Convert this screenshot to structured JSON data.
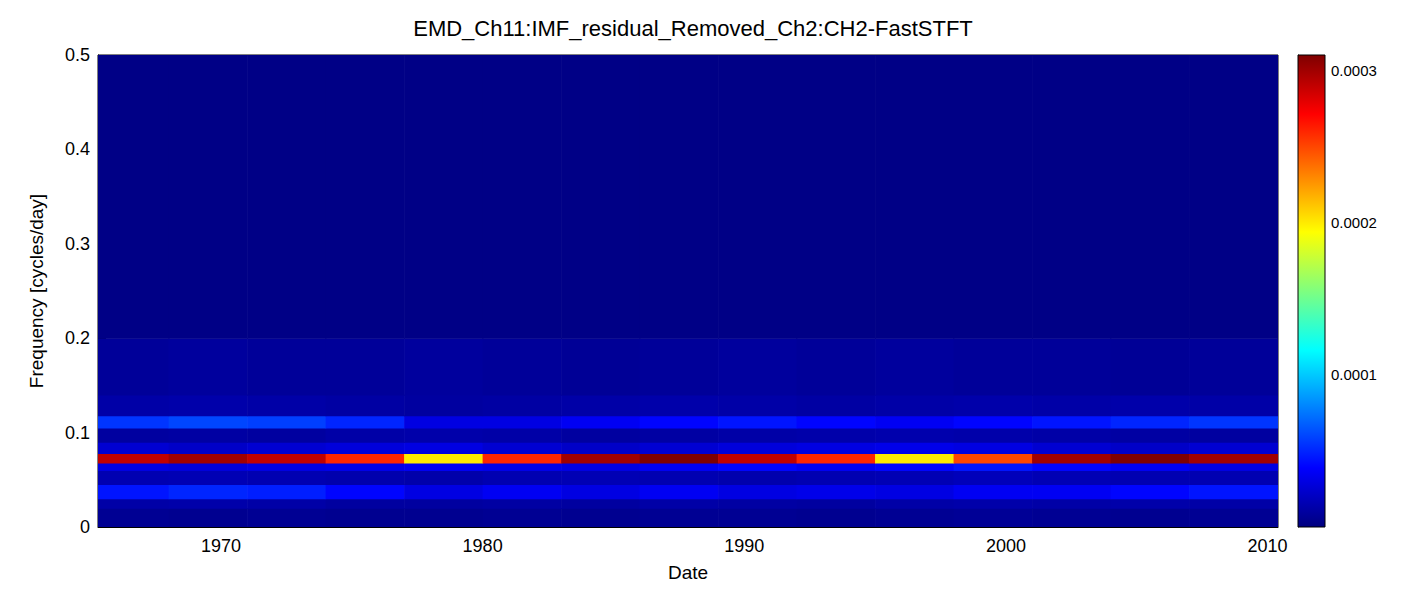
{
  "chart_data": {
    "type": "heatmap",
    "title": "EMD_Ch11:IMF_residual_Removed_Ch2:CH2-FastSTFT",
    "x_label": "Date",
    "y_label": "Frequency [cycles/day]",
    "xlim": [
      1965.3,
      2010.4
    ],
    "xticks": [
      1970,
      1980,
      1990,
      2000,
      2010
    ],
    "ylim": [
      0,
      0.5
    ],
    "yticks": [
      0,
      0.1,
      0.2,
      0.3,
      0.4,
      0.5
    ],
    "grid": false,
    "x_edges": [
      1965.3,
      1968,
      1971,
      1974,
      1977,
      1980,
      1983,
      1986,
      1989,
      1992,
      1995,
      1998,
      2001,
      2004,
      2007,
      2010.4
    ],
    "y_edges": [
      0,
      0.02,
      0.03,
      0.045,
      0.06,
      0.068,
      0.078,
      0.09,
      0.105,
      0.118,
      0.14,
      0.2,
      0.5
    ],
    "cells": [
      [
        6e-06,
        5e-06,
        6e-06,
        5e-06,
        5e-06,
        6e-06,
        5e-06,
        6e-06,
        6e-06,
        5e-06,
        6e-06,
        7e-06,
        6e-06,
        5e-06,
        6e-06
      ],
      [
        1.2e-05,
        1.3e-05,
        1.2e-05,
        1e-05,
        1e-05,
        1.1e-05,
        1e-05,
        1.2e-05,
        1.1e-05,
        1e-05,
        1.2e-05,
        1.3e-05,
        1.2e-05,
        1.3e-05,
        1.2e-05
      ],
      [
        4.5e-05,
        5e-05,
        4.8e-05,
        4e-05,
        3e-05,
        3.5e-05,
        3e-05,
        3.5e-05,
        3e-05,
        3.2e-05,
        3e-05,
        3.5e-05,
        3.5e-05,
        4e-05,
        4.5e-05
      ],
      [
        1.5e-05,
        1.6e-05,
        1.5e-05,
        1.4e-05,
        1.3e-05,
        1.5e-05,
        1.6e-05,
        1.5e-05,
        1.4e-05,
        1.5e-05,
        1.6e-05,
        1.8e-05,
        1.6e-05,
        1.5e-05,
        1.5e-05
      ],
      [
        3e-05,
        2.8e-05,
        3e-05,
        3.2e-05,
        3.5e-05,
        3.2e-05,
        3e-05,
        3.5e-05,
        4e-05,
        3.5e-05,
        4e-05,
        4.5e-05,
        4e-05,
        3.5e-05,
        3e-05
      ],
      [
        0.00029,
        0.0003,
        0.00029,
        0.00026,
        0.0002,
        0.00026,
        0.0003,
        0.00031,
        0.00029,
        0.00026,
        0.0002,
        0.00025,
        0.0003,
        0.00031,
        0.0003
      ],
      [
        2.5e-05,
        2.2e-05,
        2.5e-05,
        2.8e-05,
        3e-05,
        2.5e-05,
        2.2e-05,
        2.5e-05,
        2.8e-05,
        3e-05,
        3.2e-05,
        3e-05,
        2.5e-05,
        2.2e-05,
        2.5e-05
      ],
      [
        1e-05,
        1.1e-05,
        1e-05,
        1.2e-05,
        1.3e-05,
        1.2e-05,
        1e-05,
        1.1e-05,
        1.2e-05,
        1.3e-05,
        1.4e-05,
        1.3e-05,
        1.2e-05,
        1.1e-05,
        1e-05
      ],
      [
        5.5e-05,
        6e-05,
        5.8e-05,
        5e-05,
        3e-05,
        3e-05,
        3.5e-05,
        4e-05,
        4.5e-05,
        4e-05,
        3.5e-05,
        4e-05,
        4.5e-05,
        5e-05,
        5.5e-05
      ],
      [
        1.2e-05,
        1.3e-05,
        1.2e-05,
        1.1e-05,
        1e-05,
        1.1e-05,
        1.2e-05,
        1.3e-05,
        1.2e-05,
        1.1e-05,
        1.2e-05,
        1.3e-05,
        1.2e-05,
        1.3e-05,
        1.2e-05
      ],
      [
        8e-06,
        9e-06,
        8e-06,
        8e-06,
        9e-06,
        8e-06,
        7e-06,
        8e-06,
        9e-06,
        8e-06,
        9e-06,
        8e-06,
        8e-06,
        7e-06,
        8e-06
      ],
      [
        2e-06,
        2e-06,
        2e-06,
        2e-06,
        2e-06,
        2e-06,
        2e-06,
        2e-06,
        2e-06,
        2e-06,
        2e-06,
        2e-06,
        2e-06,
        2e-06,
        2e-06
      ]
    ],
    "colorbar": {
      "range": [
        0,
        0.00031
      ],
      "ticks": [
        0.0001,
        0.0002,
        0.0003
      ]
    }
  }
}
